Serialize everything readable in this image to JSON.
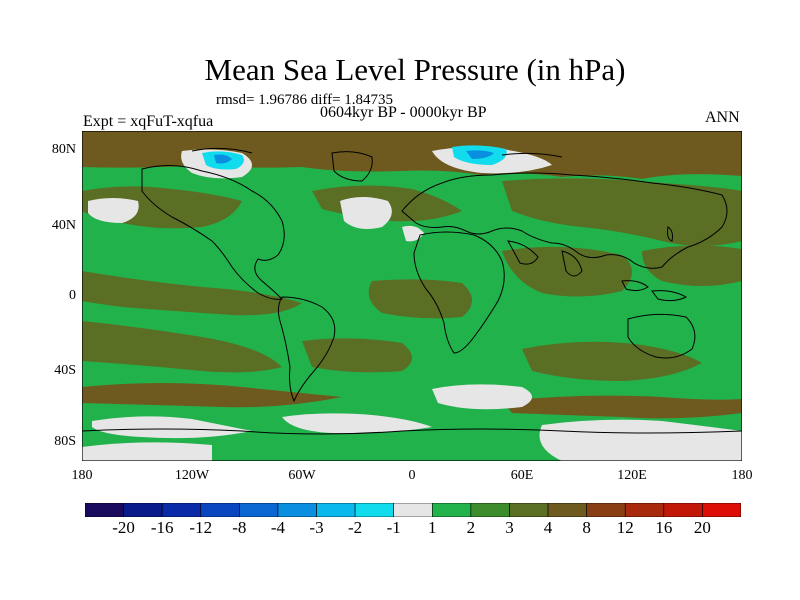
{
  "title": "Mean Sea Level Pressure (in hPa)",
  "stats": "rmsd= 1.96786 diff= 1.84735",
  "period": "0604kyr BP - 0000kyr BP",
  "experiment": "Expt = xqFuT-xqfua",
  "season": "ANN",
  "lat_labels": [
    "80N",
    "40N",
    "0",
    "40S",
    "80S"
  ],
  "lon_labels": [
    "180",
    "120W",
    "60W",
    "0",
    "60E",
    "120E",
    "180"
  ],
  "colorbar": {
    "labels": [
      "-20",
      "-16",
      "-12",
      "-8",
      "-4",
      "-3",
      "-2",
      "-1",
      "1",
      "2",
      "3",
      "4",
      "8",
      "12",
      "16",
      "20"
    ],
    "colors": [
      "#1a0a5e",
      "#0a1a8a",
      "#0a2aa8",
      "#0a46c0",
      "#0a66d0",
      "#0a8ee0",
      "#0ab8ee",
      "#10dced",
      "#e6e6e6",
      "#22b24c",
      "#3c8c2c",
      "#5a6e24",
      "#6e5a1e",
      "#8a3e14",
      "#a82a0c",
      "#c21808",
      "#dc0e06"
    ]
  },
  "map_colors": {
    "green": "#22b24c",
    "olive": "#5a6e24",
    "brown": "#6e5a1e",
    "light": "#e6e6e6",
    "cyan": "#10dced",
    "blue": "#0a8ee0",
    "coast": "#000000"
  }
}
